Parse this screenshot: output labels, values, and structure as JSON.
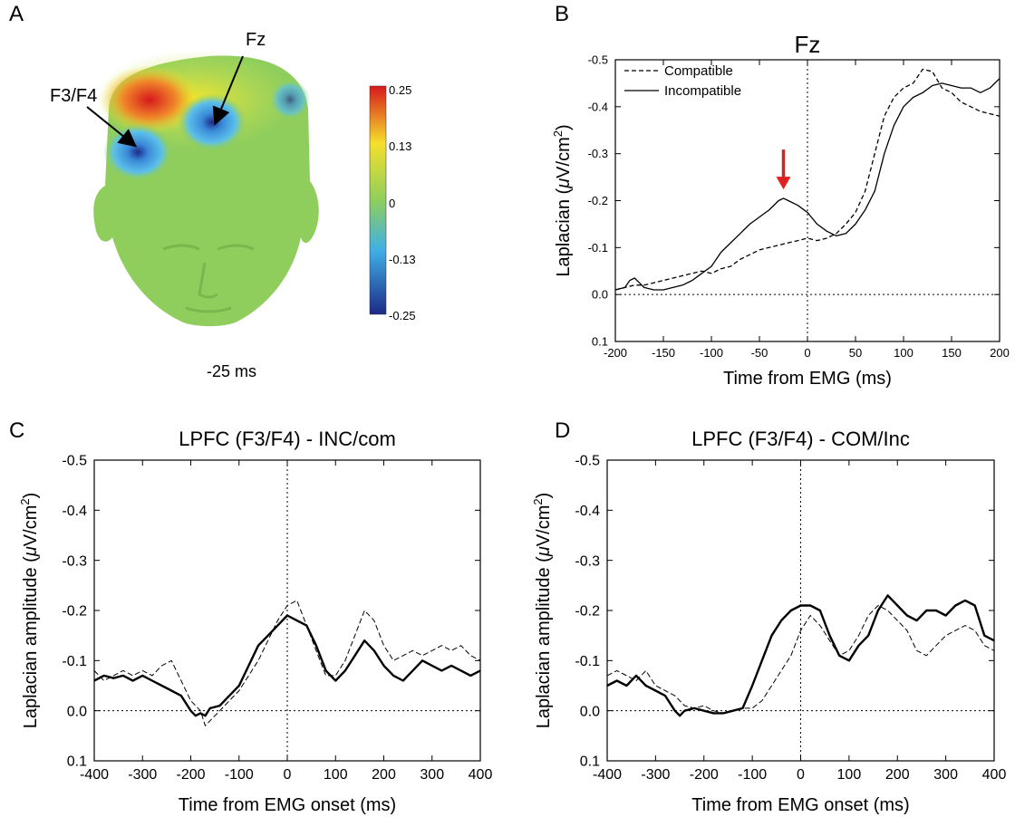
{
  "panels": {
    "a": "A",
    "b": "B",
    "c": "C",
    "d": "D"
  },
  "topomap": {
    "labels": {
      "fz": "Fz",
      "f3f4": "F3/F4"
    },
    "time_label": "-25 ms",
    "colorbar_ticks": [
      "0.25",
      "0.13",
      "0",
      "-0.13",
      "-0.25"
    ],
    "colors": {
      "red": "#e0302a",
      "yellow": "#f2e62a",
      "green": "#8fce5c",
      "blue": "#3aa6e0",
      "navy": "#1f2a8a"
    }
  },
  "chart_data": [
    {
      "id": "B",
      "type": "line",
      "title": "Fz",
      "xlabel": "Time from EMG (ms)",
      "ylabel_main": "Laplacian (",
      "ylabel_mu": "μ",
      "ylabel_unit": "V/cm",
      "ylabel_sup": "2",
      "ylabel_close": ")",
      "xlim": [
        -200,
        200
      ],
      "ylim": [
        0.1,
        -0.5
      ],
      "xticks": [
        "-200",
        "-150",
        "-100",
        "-50",
        "0",
        "50",
        "100",
        "150",
        "200"
      ],
      "yticks": [
        "-0.5",
        "-0.4",
        "-0.3",
        "-0.2",
        "-0.1",
        "0.0",
        "0.1"
      ],
      "annotation": {
        "x": -25,
        "y": -0.22,
        "color": "#e0201e"
      },
      "series": [
        {
          "name": "Compatible",
          "style": "dashed",
          "x": [
            -200,
            -190,
            -180,
            -170,
            -160,
            -150,
            -140,
            -130,
            -120,
            -110,
            -100,
            -90,
            -80,
            -70,
            -60,
            -50,
            -40,
            -30,
            -20,
            -10,
            0,
            10,
            20,
            30,
            40,
            50,
            60,
            70,
            80,
            90,
            100,
            110,
            120,
            130,
            140,
            150,
            160,
            170,
            180,
            190,
            200
          ],
          "y": [
            -0.01,
            -0.015,
            -0.02,
            -0.02,
            -0.025,
            -0.03,
            -0.035,
            -0.04,
            -0.045,
            -0.05,
            -0.045,
            -0.055,
            -0.06,
            -0.075,
            -0.085,
            -0.095,
            -0.1,
            -0.105,
            -0.11,
            -0.115,
            -0.12,
            -0.115,
            -0.12,
            -0.13,
            -0.15,
            -0.175,
            -0.22,
            -0.3,
            -0.38,
            -0.42,
            -0.44,
            -0.45,
            -0.48,
            -0.475,
            -0.44,
            -0.43,
            -0.41,
            -0.4,
            -0.39,
            -0.385,
            -0.38
          ]
        },
        {
          "name": "Incompatible",
          "style": "solid",
          "x": [
            -200,
            -190,
            -185,
            -180,
            -175,
            -170,
            -160,
            -150,
            -140,
            -130,
            -120,
            -110,
            -100,
            -90,
            -80,
            -70,
            -60,
            -50,
            -40,
            -30,
            -25,
            -20,
            -10,
            0,
            10,
            20,
            30,
            40,
            50,
            60,
            70,
            80,
            90,
            100,
            110,
            120,
            130,
            140,
            150,
            160,
            170,
            180,
            190,
            200
          ],
          "y": [
            -0.01,
            -0.015,
            -0.03,
            -0.035,
            -0.025,
            -0.015,
            -0.01,
            -0.01,
            -0.015,
            -0.02,
            -0.03,
            -0.045,
            -0.06,
            -0.09,
            -0.11,
            -0.13,
            -0.15,
            -0.165,
            -0.18,
            -0.2,
            -0.205,
            -0.2,
            -0.19,
            -0.175,
            -0.15,
            -0.135,
            -0.125,
            -0.13,
            -0.15,
            -0.18,
            -0.22,
            -0.3,
            -0.36,
            -0.4,
            -0.42,
            -0.43,
            -0.445,
            -0.45,
            -0.445,
            -0.44,
            -0.44,
            -0.43,
            -0.44,
            -0.46
          ]
        }
      ]
    },
    {
      "id": "C",
      "type": "line",
      "title": "LPFC (F3/F4) - INC/com",
      "xlabel": "Time from EMG onset (ms)",
      "ylabel_main": "Laplacian amplitude (",
      "ylabel_mu": "μ",
      "ylabel_unit": "V/cm",
      "ylabel_sup": "2",
      "ylabel_close": ")",
      "xlim": [
        -400,
        400
      ],
      "ylim": [
        0.1,
        -0.5
      ],
      "xticks": [
        "-400",
        "-300",
        "-200",
        "-100",
        "0",
        "100",
        "200",
        "300",
        "400"
      ],
      "yticks": [
        "-0.5",
        "-0.4",
        "-0.3",
        "-0.2",
        "-0.1",
        "0.0",
        "0.1"
      ],
      "series": [
        {
          "style": "solid-thick",
          "x": [
            -400,
            -380,
            -360,
            -340,
            -320,
            -300,
            -280,
            -260,
            -240,
            -220,
            -200,
            -190,
            -180,
            -170,
            -160,
            -140,
            -120,
            -100,
            -80,
            -60,
            -40,
            -20,
            0,
            20,
            40,
            60,
            80,
            100,
            120,
            140,
            160,
            180,
            200,
            220,
            240,
            260,
            280,
            300,
            320,
            340,
            360,
            380,
            400
          ],
          "y": [
            -0.06,
            -0.07,
            -0.065,
            -0.07,
            -0.06,
            -0.07,
            -0.06,
            -0.05,
            -0.04,
            -0.03,
            0.0,
            0.01,
            0.005,
            0.01,
            -0.005,
            -0.01,
            -0.03,
            -0.05,
            -0.09,
            -0.13,
            -0.15,
            -0.17,
            -0.19,
            -0.18,
            -0.17,
            -0.13,
            -0.08,
            -0.06,
            -0.08,
            -0.11,
            -0.14,
            -0.12,
            -0.09,
            -0.07,
            -0.06,
            -0.08,
            -0.1,
            -0.09,
            -0.08,
            -0.09,
            -0.08,
            -0.07,
            -0.08
          ]
        },
        {
          "style": "dashed-thin",
          "x": [
            -400,
            -380,
            -360,
            -340,
            -320,
            -300,
            -280,
            -260,
            -240,
            -220,
            -200,
            -180,
            -170,
            -160,
            -140,
            -120,
            -100,
            -80,
            -60,
            -40,
            -20,
            0,
            20,
            40,
            60,
            80,
            100,
            120,
            140,
            160,
            180,
            200,
            220,
            240,
            260,
            280,
            300,
            320,
            340,
            360,
            380,
            400
          ],
          "y": [
            -0.08,
            -0.06,
            -0.07,
            -0.08,
            -0.07,
            -0.08,
            -0.07,
            -0.09,
            -0.1,
            -0.06,
            -0.02,
            0.0,
            0.03,
            0.02,
            0.0,
            -0.02,
            -0.04,
            -0.07,
            -0.1,
            -0.14,
            -0.18,
            -0.21,
            -0.22,
            -0.17,
            -0.12,
            -0.07,
            -0.07,
            -0.1,
            -0.15,
            -0.2,
            -0.18,
            -0.13,
            -0.1,
            -0.11,
            -0.12,
            -0.11,
            -0.12,
            -0.13,
            -0.12,
            -0.13,
            -0.11,
            -0.1
          ]
        }
      ]
    },
    {
      "id": "D",
      "type": "line",
      "title": "LPFC (F3/F4) - COM/Inc",
      "xlabel": "Time from EMG onset (ms)",
      "ylabel_main": "Laplacian amplitude (",
      "ylabel_mu": "μ",
      "ylabel_unit": "V/cm",
      "ylabel_sup": "2",
      "ylabel_close": ")",
      "xlim": [
        -400,
        400
      ],
      "ylim": [
        0.1,
        -0.5
      ],
      "xticks": [
        "-400",
        "-300",
        "-200",
        "-100",
        "0",
        "100",
        "200",
        "300",
        "400"
      ],
      "yticks": [
        "-0.5",
        "-0.4",
        "-0.3",
        "-0.2",
        "-0.1",
        "0.0",
        "0.1"
      ],
      "series": [
        {
          "style": "solid-thick",
          "x": [
            -400,
            -380,
            -360,
            -340,
            -320,
            -300,
            -280,
            -260,
            -250,
            -240,
            -220,
            -200,
            -180,
            -160,
            -140,
            -120,
            -100,
            -80,
            -60,
            -40,
            -20,
            0,
            20,
            40,
            60,
            80,
            100,
            120,
            140,
            160,
            180,
            200,
            220,
            240,
            260,
            280,
            300,
            320,
            340,
            360,
            380,
            400
          ],
          "y": [
            -0.05,
            -0.06,
            -0.05,
            -0.07,
            -0.05,
            -0.04,
            -0.03,
            0.0,
            0.01,
            0.0,
            -0.005,
            0.0,
            0.005,
            0.005,
            0.0,
            -0.005,
            -0.05,
            -0.1,
            -0.15,
            -0.18,
            -0.2,
            -0.21,
            -0.21,
            -0.2,
            -0.15,
            -0.11,
            -0.1,
            -0.13,
            -0.15,
            -0.2,
            -0.23,
            -0.21,
            -0.19,
            -0.18,
            -0.2,
            -0.2,
            -0.19,
            -0.21,
            -0.22,
            -0.21,
            -0.15,
            -0.14
          ]
        },
        {
          "style": "dashed-thin",
          "x": [
            -400,
            -380,
            -360,
            -340,
            -320,
            -300,
            -280,
            -260,
            -240,
            -220,
            -200,
            -180,
            -160,
            -140,
            -120,
            -100,
            -80,
            -60,
            -40,
            -20,
            0,
            20,
            40,
            60,
            80,
            100,
            120,
            140,
            160,
            180,
            200,
            220,
            240,
            260,
            280,
            300,
            320,
            340,
            360,
            380,
            400
          ],
          "y": [
            -0.07,
            -0.08,
            -0.07,
            -0.06,
            -0.08,
            -0.05,
            -0.04,
            -0.03,
            -0.01,
            -0.005,
            -0.01,
            0.0,
            0.005,
            0.0,
            -0.005,
            -0.005,
            -0.02,
            -0.05,
            -0.08,
            -0.11,
            -0.16,
            -0.19,
            -0.17,
            -0.14,
            -0.11,
            -0.12,
            -0.15,
            -0.19,
            -0.21,
            -0.2,
            -0.18,
            -0.16,
            -0.12,
            -0.11,
            -0.13,
            -0.15,
            -0.16,
            -0.17,
            -0.16,
            -0.13,
            -0.12
          ]
        }
      ]
    }
  ]
}
